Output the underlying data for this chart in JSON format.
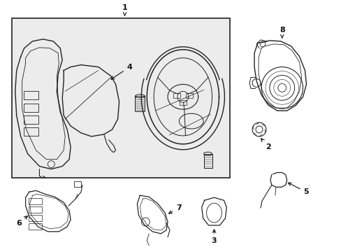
{
  "bg_color": "#f0f0f0",
  "line_color": "#222222",
  "text_color": "#111111",
  "label_fontsize": 8,
  "figsize": [
    4.89,
    3.6
  ],
  "dpi": 100
}
